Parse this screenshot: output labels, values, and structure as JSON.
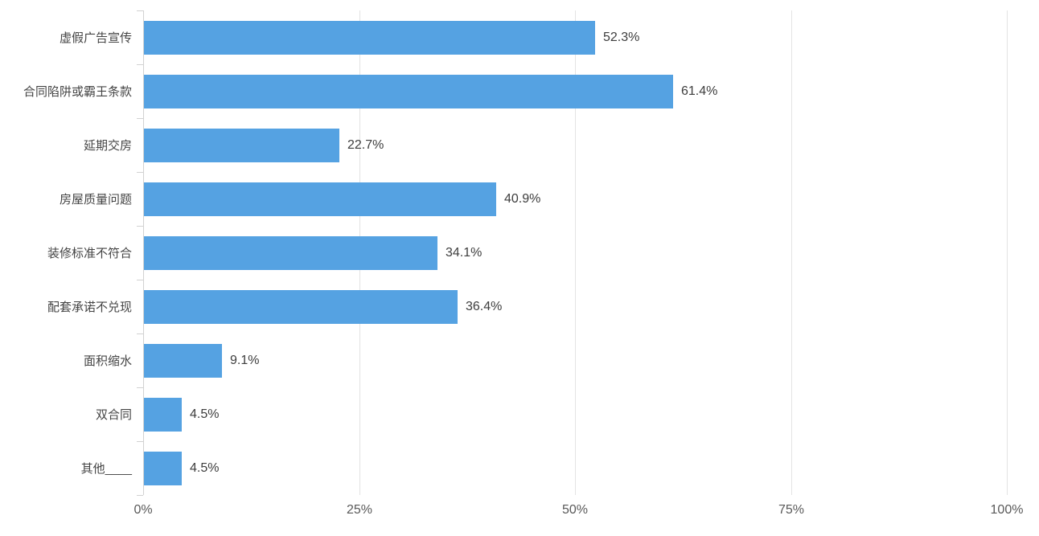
{
  "chart_data": {
    "type": "bar",
    "orientation": "horizontal",
    "title": "",
    "categories": [
      "虚假广告宣传",
      "合同陷阱或霸王条款",
      "延期交房",
      "房屋质量问题",
      "装修标准不符合",
      "配套承诺不兑现",
      "面积缩水",
      "双合同",
      "其他____"
    ],
    "values": [
      52.3,
      61.4,
      22.7,
      40.9,
      34.1,
      36.4,
      9.1,
      4.5,
      4.5
    ],
    "value_labels": [
      "52.3%",
      "61.4%",
      "22.7%",
      "40.9%",
      "34.1%",
      "36.4%",
      "9.1%",
      "4.5%",
      "4.5%"
    ],
    "x_axis": {
      "range": [
        0,
        100
      ],
      "tick_values": [
        0,
        25,
        50,
        75,
        100
      ],
      "tick_labels": [
        "0%",
        "25%",
        "50%",
        "75%",
        "100%"
      ]
    },
    "grid": true,
    "legend": false,
    "colors": {
      "bar": "#55a2e2",
      "gridline": "#e3e3e3",
      "axis": "#d2d2d2",
      "category_label": "#444444",
      "value_label": "#3d3d3d",
      "tick_label": "#595959"
    }
  }
}
